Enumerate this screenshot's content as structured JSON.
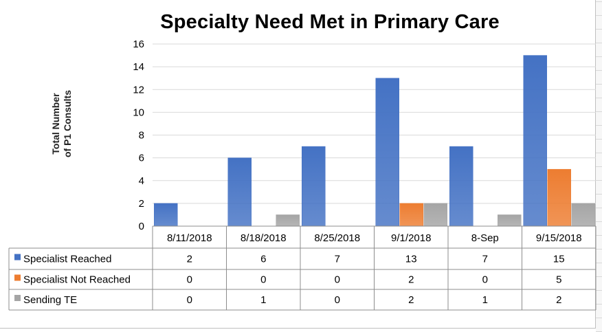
{
  "chart_data": {
    "type": "bar",
    "title": "Specialty Need Met in Primary Care",
    "ylabel": "Total Number of P1 Consults",
    "ylabel_lines": [
      "Total Number",
      "of P1 Consults"
    ],
    "xlabel": "",
    "ylim": [
      0,
      16
    ],
    "yticks": [
      0,
      2,
      4,
      6,
      8,
      10,
      12,
      14,
      16
    ],
    "grid": true,
    "legend": "data-table-below",
    "categories": [
      "8/11/2018",
      "8/18/2018",
      "8/25/2018",
      "9/1/2018",
      "8-Sep",
      "9/15/2018"
    ],
    "series": [
      {
        "name": "Specialist Reached",
        "color": "#4472c4",
        "values": [
          2,
          6,
          7,
          13,
          7,
          15
        ]
      },
      {
        "name": "Specialist Not Reached",
        "color": "#ed7d31",
        "values": [
          0,
          0,
          0,
          2,
          0,
          5
        ]
      },
      {
        "name": "Sending TE",
        "color": "#a5a5a5",
        "values": [
          0,
          1,
          0,
          2,
          1,
          2
        ]
      }
    ]
  }
}
